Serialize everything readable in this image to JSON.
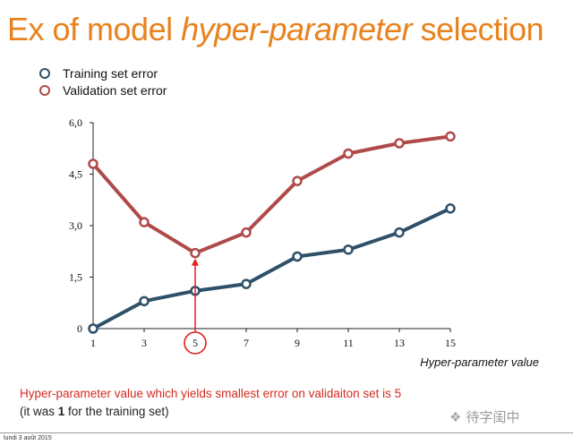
{
  "slide": {
    "title_part1": "Ex of model ",
    "title_emphasis": "hyper-parameter",
    "title_part2": " selection",
    "note_line1": "Hyper-parameter value which yields smallest error on validaiton set is 5",
    "note_line2_prefix": "(it was ",
    "note_line2_bold": "1",
    "note_line2_suffix": " for the training set)",
    "watermark_text": "待字闺中",
    "watermark_icon": "wechat-icon",
    "footer_date": "lundi 3 août 2015",
    "title_color": "#e8821e"
  },
  "chart_data": {
    "type": "line",
    "x": [
      1,
      3,
      5,
      7,
      9,
      11,
      13,
      15
    ],
    "x_tick_labels": [
      "1",
      "3",
      "5",
      "7",
      "9",
      "11",
      "13",
      "15"
    ],
    "y_tick_values": [
      0,
      1.5,
      3.0,
      4.5,
      6.0
    ],
    "y_tick_labels": [
      "0",
      "1,5",
      "3,0",
      "4,5",
      "6,0"
    ],
    "ylim": [
      0,
      6
    ],
    "xlabel": "Hyper-parameter value",
    "ylabel": "",
    "grid": false,
    "legend_position": "top-left",
    "series": [
      {
        "name": "Training set error",
        "color": "#2e5068",
        "values": [
          0.0,
          0.8,
          1.1,
          1.3,
          2.1,
          2.3,
          2.8,
          3.5
        ]
      },
      {
        "name": "Validation set error",
        "color": "#b04a4a",
        "values": [
          4.8,
          3.1,
          2.2,
          2.8,
          4.3,
          5.1,
          5.4,
          5.6
        ]
      }
    ],
    "annotation": {
      "x": 5,
      "y": 2.2,
      "circle_label": "5",
      "color": "#e02020"
    }
  }
}
